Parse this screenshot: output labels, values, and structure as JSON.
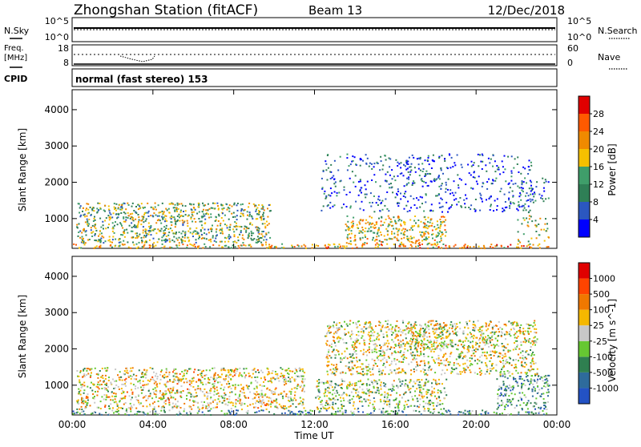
{
  "header": {
    "station": "Zhongshan Station (fitACF)",
    "beam": "Beam 13",
    "date": "12/Dec/2018"
  },
  "noise_panel": {
    "left_label": "N.Sky",
    "left_ticks": [
      "10^5",
      "10^0"
    ],
    "right_label": "N.Search",
    "right_ticks": [
      "10^5",
      "10^0"
    ]
  },
  "freq_panel": {
    "left_label_1": "Freq.",
    "left_label_2": "[MHz]",
    "left_ticks": [
      "18",
      "8"
    ],
    "right_label": "Nave",
    "right_ticks": [
      "60",
      "0"
    ]
  },
  "cpid": {
    "label": "CPID",
    "text": "normal (fast stereo) 153"
  },
  "x_axis": {
    "label": "Time UT",
    "ticks": [
      "00:00",
      "04:00",
      "08:00",
      "12:00",
      "16:00",
      "20:00",
      "00:00"
    ]
  },
  "colors": {
    "power_scale": [
      "#0000ff",
      "#2b57c0",
      "#2f7f56",
      "#3f9e6a",
      "#f5c000",
      "#f08a00",
      "#ff5a00",
      "#e00000"
    ],
    "velocity_scale": [
      "#2352c4",
      "#2e6b9c",
      "#2f7f50",
      "#66c832",
      "#c8c8c8",
      "#f5b800",
      "#f07800",
      "#ff4400",
      "#e00000"
    ]
  },
  "chart_data": [
    {
      "type": "heatmap",
      "panel": "power",
      "ylabel": "Slant Range [km]",
      "yticks": [
        "4000",
        "3000",
        "2000",
        "1000"
      ],
      "ylim": [
        180,
        4550
      ],
      "xlim_hours": [
        0,
        24
      ],
      "colorbar": {
        "label": "Power [dB]",
        "range": [
          0,
          32
        ],
        "ticks": [
          "28",
          "24",
          "20",
          "16",
          "12",
          "8",
          "4"
        ]
      },
      "scatter_regions": [
        {
          "t": [
            0,
            12
          ],
          "r": [
            200,
            320
          ],
          "level": 0.62
        },
        {
          "t": [
            12,
            23.6
          ],
          "r": [
            200,
            320
          ],
          "level": 0.7
        },
        {
          "t": [
            0.2,
            9.8
          ],
          "r": [
            350,
            1450
          ],
          "level": 0.45
        },
        {
          "t": [
            13.5,
            18.5
          ],
          "r": [
            300,
            1100
          ],
          "level": 0.58
        },
        {
          "t": [
            12.3,
            22.8
          ],
          "r": [
            1200,
            2800
          ],
          "level": 0.18
        },
        {
          "t": [
            16.5,
            18.5
          ],
          "r": [
            1900,
            2700
          ],
          "level": 0.22
        },
        {
          "t": [
            21.5,
            23.6
          ],
          "r": [
            1300,
            2200
          ],
          "level": 0.25
        },
        {
          "t": [
            22,
            23.6
          ],
          "r": [
            350,
            1300
          ],
          "level": 0.5
        }
      ]
    },
    {
      "type": "heatmap",
      "panel": "velocity",
      "ylabel": "Slant Range [km]",
      "yticks": [
        "4000",
        "3000",
        "2000",
        "1000"
      ],
      "ylim": [
        180,
        4550
      ],
      "xlim_hours": [
        0,
        24
      ],
      "colorbar": {
        "label": "Velocity [m s^-1]",
        "ticks": [
          "1000",
          "500",
          "100",
          "25",
          "-25",
          "-100",
          "-500",
          "-1000"
        ]
      },
      "scatter_regions": [
        {
          "t": [
            0,
            23.6
          ],
          "r": [
            200,
            330
          ],
          "level": 0.3
        },
        {
          "t": [
            0.2,
            11.5
          ],
          "r": [
            350,
            1500
          ],
          "level": 0.55
        },
        {
          "t": [
            12,
            18.5
          ],
          "r": [
            350,
            1200
          ],
          "level": 0.45
        },
        {
          "t": [
            12.5,
            23
          ],
          "r": [
            1300,
            2800
          ],
          "level": 0.52
        },
        {
          "t": [
            16.5,
            18.5
          ],
          "r": [
            2000,
            2700
          ],
          "level": 0.52
        },
        {
          "t": [
            21,
            23.6
          ],
          "r": [
            350,
            1300
          ],
          "level": 0.28
        }
      ]
    }
  ]
}
